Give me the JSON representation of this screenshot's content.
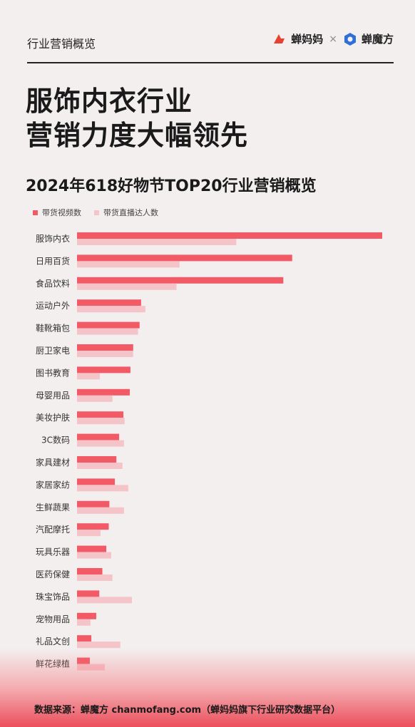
{
  "header": {
    "section_label": "行业营销概览",
    "logo_left": "蝉妈妈",
    "times": "×",
    "logo_right": "蝉魔方"
  },
  "title_line1": "服饰内衣行业",
  "title_line2": "营销力度大幅领先",
  "colors": {
    "primary": "#f25a66",
    "secondary": "#f5c4c8",
    "accent": "#e8412f"
  },
  "chart_data": {
    "type": "bar",
    "orientation": "horizontal",
    "title": "2024年618好物节TOP20行业营销概览",
    "categories": [
      "服饰内衣",
      "日用百货",
      "食品饮料",
      "运动户外",
      "鞋靴箱包",
      "厨卫家电",
      "图书教育",
      "母婴用品",
      "美妆护肤",
      "3C数码",
      "家具建材",
      "家居家纺",
      "生鲜蔬果",
      "汽配摩托",
      "玩具乐器",
      "医药保健",
      "珠宝饰品",
      "宠物用品",
      "礼品文创",
      "鲜花绿植"
    ],
    "series": [
      {
        "name": "带货视频数",
        "values": [
          100,
          70.5,
          67.6,
          21,
          20.5,
          18.4,
          17.5,
          17.3,
          15.2,
          13.8,
          12.9,
          12.4,
          10.6,
          10.4,
          9.6,
          8.3,
          7.3,
          6.3,
          4.7,
          4.2
        ]
      },
      {
        "name": "带货直播达人数",
        "values": [
          52.2,
          33.6,
          32.6,
          22.4,
          20.0,
          18.4,
          7.5,
          11.6,
          15.6,
          15.4,
          14.9,
          16.8,
          15.4,
          7.7,
          11.2,
          11.6,
          18.0,
          4.4,
          14.2,
          9.1
        ]
      }
    ],
    "xlim": [
      0,
      100
    ],
    "grid": false,
    "legend": "top-left"
  },
  "footer": "数据来源：蝉魔方 chanmofang.com（蝉妈妈旗下行业研究数据平台）"
}
